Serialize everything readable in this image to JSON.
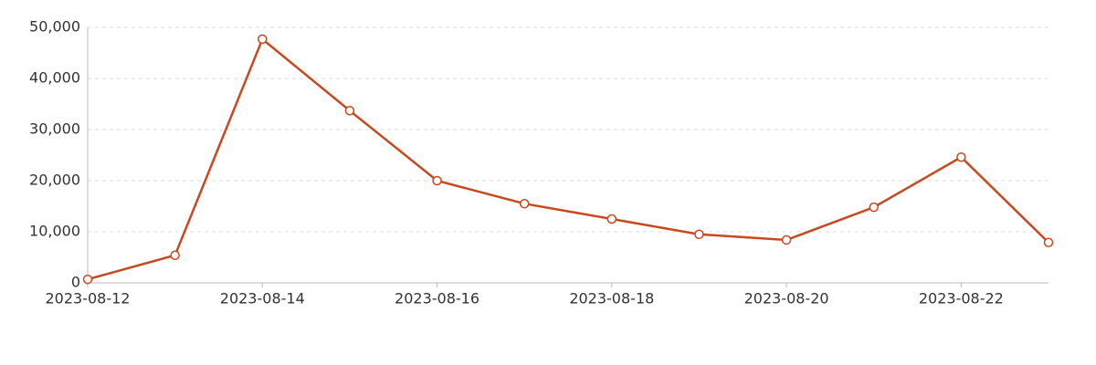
{
  "chart_data": {
    "type": "line",
    "x": [
      "2023-08-12",
      "2023-08-13",
      "2023-08-14",
      "2023-08-15",
      "2023-08-16",
      "2023-08-17",
      "2023-08-18",
      "2023-08-19",
      "2023-08-20",
      "2023-08-21",
      "2023-08-22",
      "2023-08-23"
    ],
    "values": [
      700,
      5400,
      47700,
      33700,
      20000,
      15500,
      12500,
      9500,
      8400,
      14800,
      24600,
      7900
    ],
    "color": "#c8491f",
    "xticks": [
      "2023-08-12",
      "2023-08-14",
      "2023-08-16",
      "2023-08-18",
      "2023-08-20",
      "2023-08-22"
    ],
    "ylim": [
      0,
      50000
    ],
    "yticks": [
      0,
      {
        "value": 10000,
        "label": "10,000"
      },
      {
        "value": 20000,
        "label": "20,000"
      },
      {
        "value": 30000,
        "label": "30,000"
      },
      {
        "value": 40000,
        "label": "40,000"
      },
      {
        "value": 50000,
        "label": "50,000"
      }
    ],
    "grid": true
  }
}
